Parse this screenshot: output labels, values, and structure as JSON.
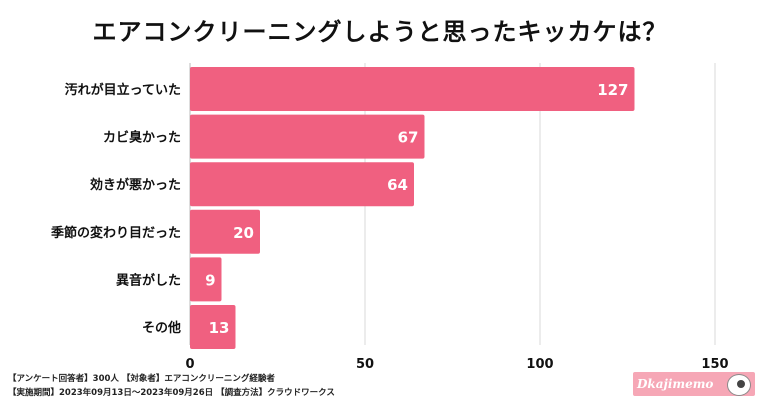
{
  "chart_data": {
    "type": "bar",
    "orientation": "horizontal",
    "title": "エアコンクリーニングしようと思ったキッカケは？",
    "categories": [
      "汚れが目立っていた",
      "カビ臭かった",
      "効きが悪かった",
      "季節の変わり目だった",
      "異音がした",
      "その他"
    ],
    "values": [
      127,
      67,
      64,
      20,
      9,
      13
    ],
    "xlim": [
      0,
      150
    ],
    "xticks": [
      0,
      50,
      100,
      150
    ],
    "grid": true,
    "legend": "none"
  },
  "colors": {
    "bar": "#f06080",
    "grid": "#d9d9d9",
    "logo_bg": "#f6a7b6"
  },
  "footer": {
    "line1": "【アンケート回答者】300人 【対象者】エアコンクリーニング経験者",
    "line2": "【実施期間】2023年09月13日〜2023年09月26日 【調査方法】クラウドワークス"
  },
  "logo": {
    "text": "Dkajimemo",
    "icon": "sheep-icon"
  }
}
